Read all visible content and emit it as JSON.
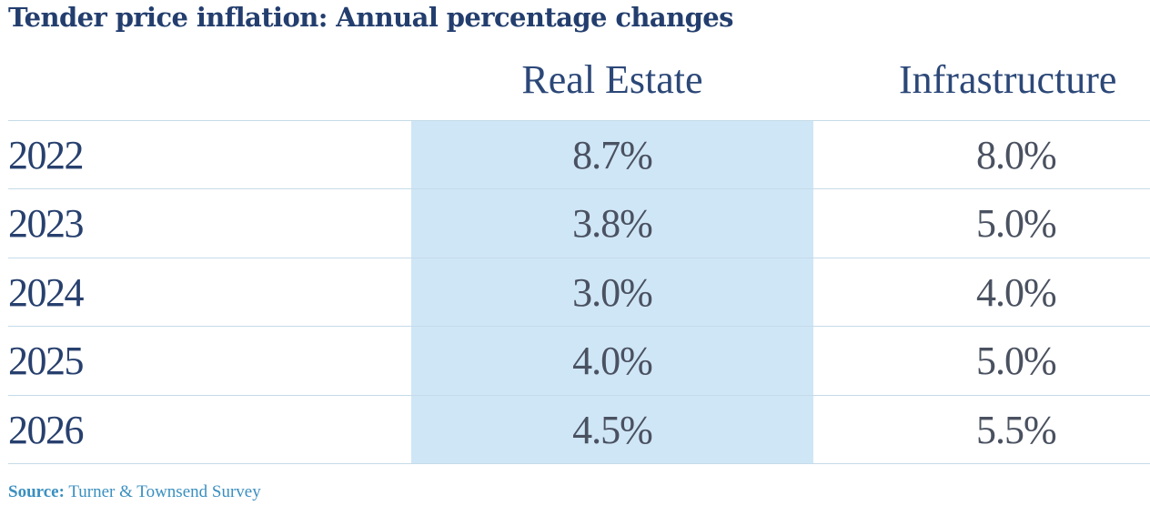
{
  "title": "Tender price inflation: Annual percentage changes",
  "columns": [
    "Real Estate",
    "Infrastructure"
  ],
  "rows": [
    {
      "year": "2022",
      "real_estate": "8.7%",
      "infrastructure": "8.0%"
    },
    {
      "year": "2023",
      "real_estate": "3.8%",
      "infrastructure": "5.0%"
    },
    {
      "year": "2024",
      "real_estate": "3.0%",
      "infrastructure": "4.0%"
    },
    {
      "year": "2025",
      "real_estate": "4.0%",
      "infrastructure": "5.0%"
    },
    {
      "year": "2026",
      "real_estate": "4.5%",
      "infrastructure": "5.5%"
    }
  ],
  "source_label": "Source:",
  "source_text": "Turner & Townsend Survey",
  "colors": {
    "title": "#233e6e",
    "highlight": "#cfe6f7",
    "source": "#3a8fc0"
  },
  "chart_data": {
    "type": "table",
    "title": "Tender price inflation: Annual percentage changes",
    "categories": [
      "2022",
      "2023",
      "2024",
      "2025",
      "2026"
    ],
    "series": [
      {
        "name": "Real Estate",
        "values": [
          8.7,
          3.8,
          3.0,
          4.0,
          4.5
        ]
      },
      {
        "name": "Infrastructure",
        "values": [
          8.0,
          5.0,
          4.0,
          5.0,
          5.5
        ]
      }
    ]
  }
}
